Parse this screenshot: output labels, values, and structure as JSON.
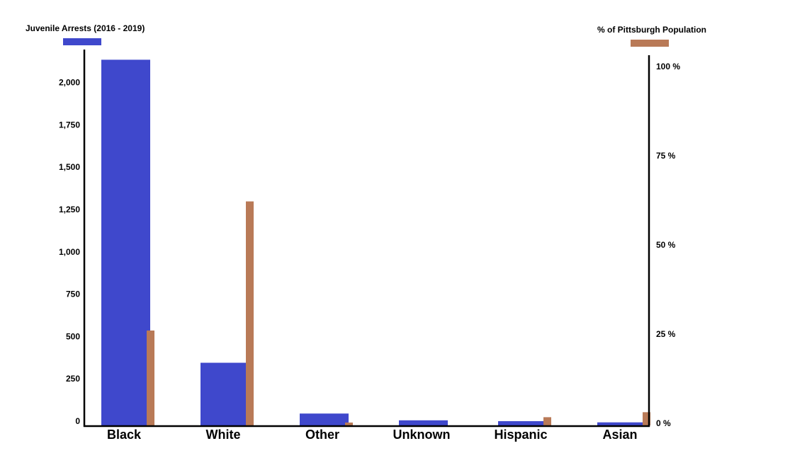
{
  "chart_data": {
    "type": "bar",
    "categories": [
      "Black",
      "White",
      "Other",
      "Unknown",
      "Hispanic",
      "Asian"
    ],
    "series": [
      {
        "name": "Juvenile Arrests (2016 - 2019)",
        "axis": "left",
        "color": "#3f48cc",
        "values": [
          2160,
          370,
          70,
          30,
          25,
          18
        ]
      },
      {
        "name": "% of Pittsburgh Population",
        "axis": "right",
        "color": "#b97a57",
        "values": [
          26.6,
          62.8,
          0.8,
          0,
          2.3,
          3.7
        ]
      }
    ],
    "left_axis": {
      "ylim": [
        0,
        2170
      ],
      "ticks": [
        0,
        250,
        500,
        750,
        1000,
        1250,
        1500,
        1750,
        2000
      ],
      "tick_labels": [
        "0",
        "250",
        "500",
        "750",
        "1,000",
        "1,250",
        "1,500",
        "1,750",
        "2,000"
      ]
    },
    "right_axis": {
      "ylim": [
        0,
        103
      ],
      "ticks": [
        0,
        25,
        50,
        75,
        100
      ],
      "tick_labels": [
        "0 %",
        "25 %",
        "50 %",
        "75 %",
        "100 %"
      ]
    },
    "legend": [
      {
        "label": "Juvenile Arrests (2016 - 2019)",
        "placement": "top-left"
      },
      {
        "label": "% of Pittsburgh Population",
        "placement": "top-right"
      }
    ],
    "grid": false
  }
}
